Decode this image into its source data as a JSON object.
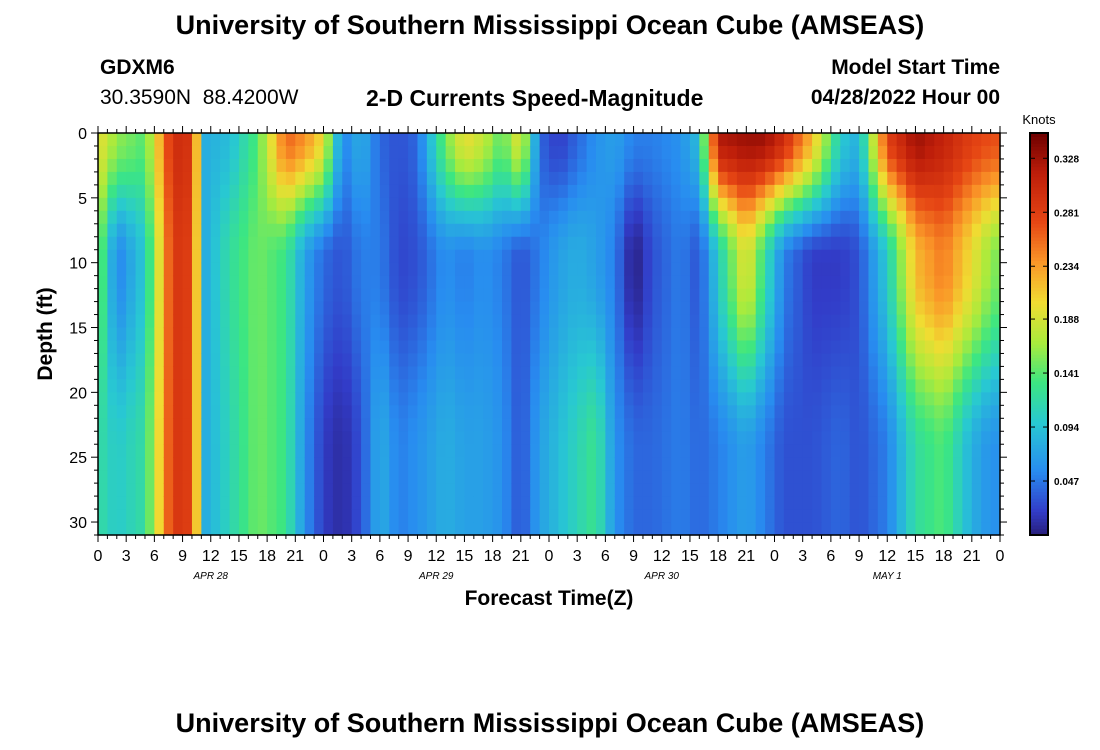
{
  "header": {
    "title": "University of Southern Mississippi Ocean Cube (AMSEAS)",
    "station_id": "GDXM6",
    "coords": "30.3590N  88.4200W",
    "plot_title": "2-D Currents Speed-Magnitude",
    "model_start_label": "Model Start Time",
    "model_start_value": "04/28/2022 Hour 00"
  },
  "footer": {
    "title": "University of Southern Mississippi Ocean Cube (AMSEAS)"
  },
  "chart_data": {
    "type": "heatmap",
    "xlabel": "Forecast Time(Z)",
    "ylabel": "Depth (ft)",
    "x_range_hours": [
      0,
      96
    ],
    "y_range_ft": [
      0,
      31
    ],
    "x_tick_labels": [
      "0",
      "3",
      "6",
      "9",
      "12",
      "15",
      "18",
      "21",
      "0",
      "3",
      "6",
      "9",
      "12",
      "15",
      "18",
      "21",
      "0",
      "3",
      "6",
      "9",
      "12",
      "15",
      "18",
      "21",
      "0",
      "3",
      "6",
      "9",
      "12",
      "15",
      "18",
      "21",
      "0"
    ],
    "y_ticks": [
      0,
      5,
      10,
      15,
      20,
      25,
      30
    ],
    "day_labels": [
      {
        "label": "APR 28",
        "hour": 12
      },
      {
        "label": "APR 29",
        "hour": 36
      },
      {
        "label": "APR 30",
        "hour": 60
      },
      {
        "label": "MAY 1",
        "hour": 84
      }
    ],
    "colorbar": {
      "unit": "Knots",
      "min": 0.0,
      "max": 0.35,
      "tick_values": [
        0.047,
        0.094,
        0.141,
        0.188,
        0.234,
        0.281,
        0.328
      ],
      "tick_labels": [
        "0.047",
        "0.094",
        "0.141",
        "0.188",
        "0.234",
        "0.281",
        "0.328"
      ]
    },
    "field_description": "Estimated current speed (knots) versus forecast hour and depth",
    "speed_keyframes": [
      {
        "hour": 0,
        "surface": 0.2,
        "mid": 0.16,
        "bottom": 0.12
      },
      {
        "hour": 2,
        "surface": 0.16,
        "mid": 0.05,
        "bottom": 0.1
      },
      {
        "hour": 5,
        "surface": 0.14,
        "mid": 0.1,
        "bottom": 0.12
      },
      {
        "hour": 8,
        "surface": 0.3,
        "mid": 0.29,
        "bottom": 0.29
      },
      {
        "hour": 10,
        "surface": 0.29,
        "mid": 0.28,
        "bottom": 0.28
      },
      {
        "hour": 11.5,
        "surface": 0.08,
        "mid": 0.08,
        "bottom": 0.08
      },
      {
        "hour": 14,
        "surface": 0.09,
        "mid": 0.12,
        "bottom": 0.11
      },
      {
        "hour": 17,
        "surface": 0.14,
        "mid": 0.15,
        "bottom": 0.15
      },
      {
        "hour": 20,
        "surface": 0.26,
        "mid": 0.13,
        "bottom": 0.13
      },
      {
        "hour": 22,
        "surface": 0.24,
        "mid": 0.07,
        "bottom": 0.06
      },
      {
        "hour": 24,
        "surface": 0.2,
        "mid": 0.04,
        "bottom": 0.02
      },
      {
        "hour": 26,
        "surface": 0.05,
        "mid": 0.03,
        "bottom": 0.01
      },
      {
        "hour": 28,
        "surface": 0.08,
        "mid": 0.05,
        "bottom": 0.03
      },
      {
        "hour": 30,
        "surface": 0.04,
        "mid": 0.05,
        "bottom": 0.08
      },
      {
        "hour": 32,
        "surface": 0.03,
        "mid": 0.025,
        "bottom": 0.05
      },
      {
        "hour": 34,
        "surface": 0.04,
        "mid": 0.03,
        "bottom": 0.06
      },
      {
        "hour": 37,
        "surface": 0.15,
        "mid": 0.06,
        "bottom": 0.08
      },
      {
        "hour": 39,
        "surface": 0.2,
        "mid": 0.05,
        "bottom": 0.07
      },
      {
        "hour": 41,
        "surface": 0.18,
        "mid": 0.06,
        "bottom": 0.07
      },
      {
        "hour": 43,
        "surface": 0.14,
        "mid": 0.05,
        "bottom": 0.06
      },
      {
        "hour": 45,
        "surface": 0.2,
        "mid": 0.03,
        "bottom": 0.03
      },
      {
        "hour": 47,
        "surface": 0.04,
        "mid": 0.05,
        "bottom": 0.07
      },
      {
        "hour": 49,
        "surface": 0.02,
        "mid": 0.07,
        "bottom": 0.09
      },
      {
        "hour": 51,
        "surface": 0.04,
        "mid": 0.08,
        "bottom": 0.11
      },
      {
        "hour": 53,
        "surface": 0.06,
        "mid": 0.07,
        "bottom": 0.13
      },
      {
        "hour": 55,
        "surface": 0.07,
        "mid": 0.05,
        "bottom": 0.06
      },
      {
        "hour": 57,
        "surface": 0.05,
        "mid": 0.0,
        "bottom": 0.04
      },
      {
        "hour": 59,
        "surface": 0.05,
        "mid": 0.03,
        "bottom": 0.04
      },
      {
        "hour": 62,
        "surface": 0.06,
        "mid": 0.05,
        "bottom": 0.05
      },
      {
        "hour": 64,
        "surface": 0.09,
        "mid": 0.03,
        "bottom": 0.04
      },
      {
        "hour": 66,
        "surface": 0.32,
        "mid": 0.1,
        "bottom": 0.05
      },
      {
        "hour": 69,
        "surface": 0.33,
        "mid": 0.2,
        "bottom": 0.07
      },
      {
        "hour": 71,
        "surface": 0.33,
        "mid": 0.12,
        "bottom": 0.05
      },
      {
        "hour": 73,
        "surface": 0.3,
        "mid": 0.05,
        "bottom": 0.03
      },
      {
        "hour": 76,
        "surface": 0.22,
        "mid": 0.02,
        "bottom": 0.03
      },
      {
        "hour": 79,
        "surface": 0.1,
        "mid": 0.02,
        "bottom": 0.04
      },
      {
        "hour": 81,
        "surface": 0.08,
        "mid": 0.03,
        "bottom": 0.03
      },
      {
        "hour": 84,
        "surface": 0.28,
        "mid": 0.1,
        "bottom": 0.05
      },
      {
        "hour": 87,
        "surface": 0.33,
        "mid": 0.22,
        "bottom": 0.12
      },
      {
        "hour": 90,
        "surface": 0.31,
        "mid": 0.25,
        "bottom": 0.14
      },
      {
        "hour": 93,
        "surface": 0.28,
        "mid": 0.2,
        "bottom": 0.08
      },
      {
        "hour": 95,
        "surface": 0.27,
        "mid": 0.16,
        "bottom": 0.06
      },
      {
        "hour": 96,
        "surface": 0.27,
        "mid": 0.15,
        "bottom": 0.06
      }
    ]
  }
}
